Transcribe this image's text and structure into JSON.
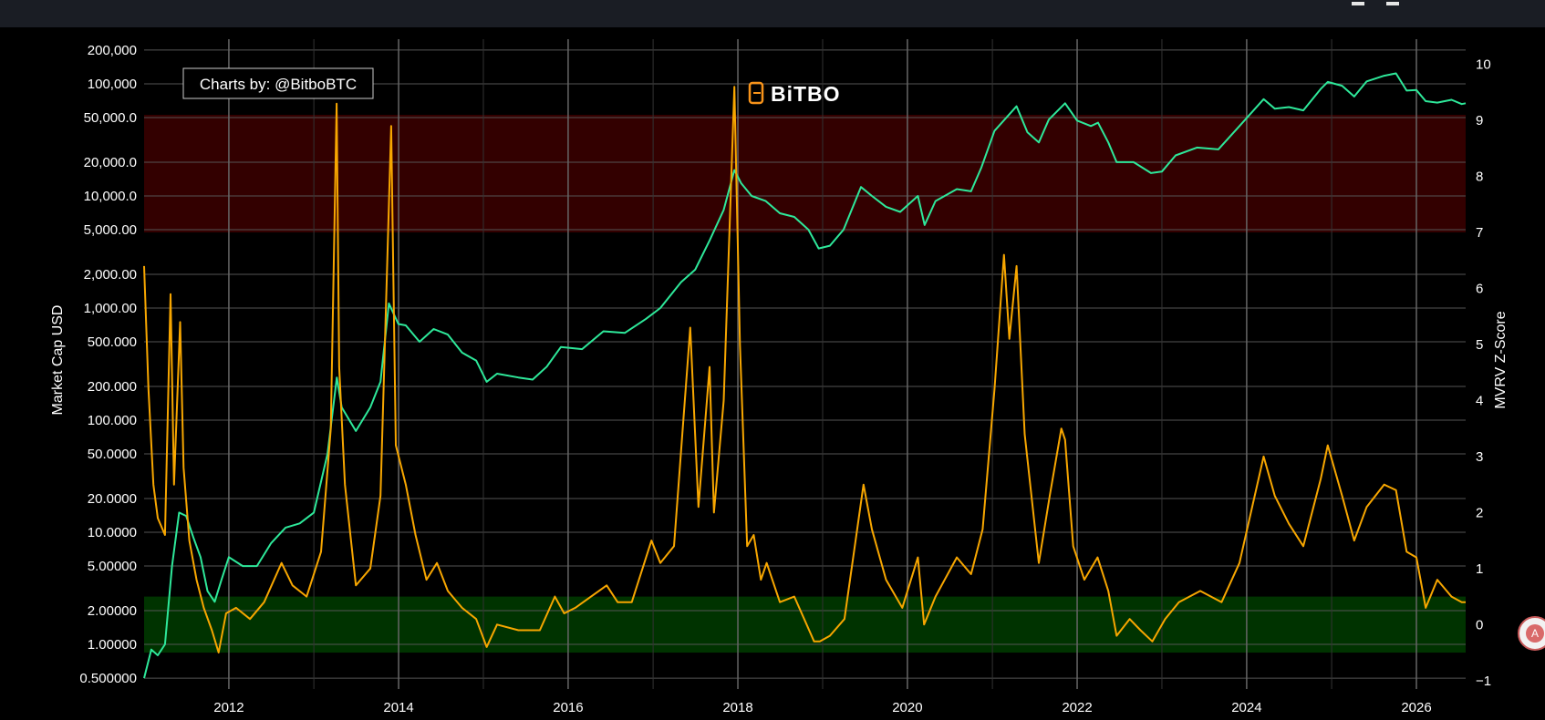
{
  "chart_data": {
    "type": "line",
    "title": "",
    "watermark": "Charts by: @BitboBTC",
    "logo_text": "BiTBO",
    "ylabel": "Market Cap USD",
    "y2label": "MVRV Z-Score",
    "y_scale": "log",
    "ylim": [
      0.4,
      250000
    ],
    "y2lim": [
      -1.15,
      10.45
    ],
    "xlim": [
      "2011-01-01",
      "2026-08-01"
    ],
    "x_ticks": [
      "2012",
      "2014",
      "2016",
      "2018",
      "2020",
      "2022",
      "2024",
      "2026"
    ],
    "y_ticks": [
      "200,000",
      "100,000",
      "50,000.0",
      "20,000.0",
      "10,000.0",
      "5,000.00",
      "2,000.00",
      "1,000.00",
      "500.000",
      "200.000",
      "100.000",
      "50.0000",
      "20.0000",
      "10.0000",
      "5.00000",
      "2.00000",
      "1.00000",
      "0.500000"
    ],
    "y2_ticks": [
      "10",
      "9",
      "8",
      "7",
      "6",
      "5",
      "4",
      "3",
      "2",
      "1",
      "0",
      "−1"
    ],
    "bands": [
      {
        "name": "overvalued zone",
        "y2_range": [
          7,
          9.1
        ],
        "color": "#330000"
      },
      {
        "name": "undervalued zone",
        "y2_range": [
          -0.5,
          0.5
        ],
        "color": "#003300"
      }
    ],
    "series": [
      {
        "role": "market cap",
        "axis": "left",
        "color": "#2ee89a",
        "points": [
          [
            "2011-01-01",
            0.5
          ],
          [
            "2011-02-01",
            0.9
          ],
          [
            "2011-03-01",
            0.8
          ],
          [
            "2011-04-01",
            1.0
          ],
          [
            "2011-05-01",
            5
          ],
          [
            "2011-06-01",
            15
          ],
          [
            "2011-07-01",
            14
          ],
          [
            "2011-08-01",
            9
          ],
          [
            "2011-09-01",
            6
          ],
          [
            "2011-10-01",
            3
          ],
          [
            "2011-11-01",
            2.4
          ],
          [
            "2011-12-01",
            3.8
          ],
          [
            "2012-01-01",
            6
          ],
          [
            "2012-03-01",
            5
          ],
          [
            "2012-05-01",
            5
          ],
          [
            "2012-07-01",
            8
          ],
          [
            "2012-09-01",
            11
          ],
          [
            "2012-11-01",
            12
          ],
          [
            "2013-01-01",
            15
          ],
          [
            "2013-03-01",
            50
          ],
          [
            "2013-04-10",
            240
          ],
          [
            "2013-05-01",
            130
          ],
          [
            "2013-07-01",
            80
          ],
          [
            "2013-09-01",
            130
          ],
          [
            "2013-10-15",
            220
          ],
          [
            "2013-11-20",
            1100
          ],
          [
            "2013-12-31",
            720
          ],
          [
            "2014-02-01",
            700
          ],
          [
            "2014-04-01",
            500
          ],
          [
            "2014-06-01",
            650
          ],
          [
            "2014-08-01",
            580
          ],
          [
            "2014-10-01",
            400
          ],
          [
            "2014-12-01",
            340
          ],
          [
            "2015-01-15",
            220
          ],
          [
            "2015-03-01",
            260
          ],
          [
            "2015-06-01",
            240
          ],
          [
            "2015-08-01",
            230
          ],
          [
            "2015-10-01",
            300
          ],
          [
            "2015-12-01",
            450
          ],
          [
            "2016-03-01",
            430
          ],
          [
            "2016-06-01",
            620
          ],
          [
            "2016-09-01",
            600
          ],
          [
            "2016-12-01",
            800
          ],
          [
            "2017-02-01",
            1000
          ],
          [
            "2017-05-01",
            1700
          ],
          [
            "2017-07-01",
            2200
          ],
          [
            "2017-09-01",
            4000
          ],
          [
            "2017-11-01",
            7500
          ],
          [
            "2017-12-17",
            17000
          ],
          [
            "2018-01-15",
            13000
          ],
          [
            "2018-03-01",
            10000
          ],
          [
            "2018-05-01",
            9000
          ],
          [
            "2018-07-01",
            7000
          ],
          [
            "2018-09-01",
            6500
          ],
          [
            "2018-11-01",
            5000
          ],
          [
            "2018-12-15",
            3400
          ],
          [
            "2019-02-01",
            3600
          ],
          [
            "2019-04-01",
            5000
          ],
          [
            "2019-06-15",
            12000
          ],
          [
            "2019-08-01",
            10000
          ],
          [
            "2019-10-01",
            8000
          ],
          [
            "2019-12-01",
            7200
          ],
          [
            "2020-02-15",
            10000
          ],
          [
            "2020-03-15",
            5500
          ],
          [
            "2020-05-01",
            9000
          ],
          [
            "2020-08-01",
            11500
          ],
          [
            "2020-10-01",
            11000
          ],
          [
            "2020-11-15",
            18000
          ],
          [
            "2021-01-10",
            38000
          ],
          [
            "2021-04-15",
            63000
          ],
          [
            "2021-06-01",
            37000
          ],
          [
            "2021-07-20",
            30000
          ],
          [
            "2021-09-01",
            48000
          ],
          [
            "2021-11-10",
            67000
          ],
          [
            "2022-01-01",
            47000
          ],
          [
            "2022-03-01",
            42000
          ],
          [
            "2022-04-01",
            45000
          ],
          [
            "2022-05-15",
            30000
          ],
          [
            "2022-06-20",
            20000
          ],
          [
            "2022-09-01",
            20000
          ],
          [
            "2022-11-15",
            16000
          ],
          [
            "2023-01-01",
            16500
          ],
          [
            "2023-03-01",
            23000
          ],
          [
            "2023-06-01",
            27000
          ],
          [
            "2023-09-01",
            26000
          ],
          [
            "2023-12-01",
            42000
          ],
          [
            "2024-03-14",
            73000
          ],
          [
            "2024-05-01",
            60000
          ],
          [
            "2024-07-01",
            62000
          ],
          [
            "2024-09-01",
            58000
          ],
          [
            "2024-11-15",
            90000
          ],
          [
            "2024-12-15",
            104000
          ],
          [
            "2025-02-15",
            96000
          ],
          [
            "2025-04-08",
            77000
          ],
          [
            "2025-06-01",
            105000
          ],
          [
            "2025-08-15",
            118000
          ],
          [
            "2025-10-05",
            124000
          ],
          [
            "2025-11-20",
            87000
          ],
          [
            "2026-01-01",
            88000
          ],
          [
            "2026-02-10",
            70000
          ],
          [
            "2026-04-01",
            68000
          ],
          [
            "2026-06-01",
            72000
          ],
          [
            "2026-07-15",
            66000
          ],
          [
            "2026-08-01",
            67000
          ]
        ]
      },
      {
        "role": "MVRV Z-Score",
        "axis": "right",
        "color": "#f7a600",
        "points": [
          [
            "2011-01-01",
            6.4
          ],
          [
            "2011-01-20",
            4.2
          ],
          [
            "2011-02-10",
            2.5
          ],
          [
            "2011-03-01",
            1.9
          ],
          [
            "2011-04-01",
            1.6
          ],
          [
            "2011-04-25",
            5.9
          ],
          [
            "2011-05-10",
            2.5
          ],
          [
            "2011-06-05",
            5.4
          ],
          [
            "2011-06-20",
            2.8
          ],
          [
            "2011-07-15",
            1.5
          ],
          [
            "2011-08-15",
            0.8
          ],
          [
            "2011-09-15",
            0.3
          ],
          [
            "2011-10-20",
            -0.1
          ],
          [
            "2011-11-18",
            -0.5
          ],
          [
            "2011-12-20",
            0.2
          ],
          [
            "2012-02-01",
            0.3
          ],
          [
            "2012-04-01",
            0.1
          ],
          [
            "2012-06-01",
            0.4
          ],
          [
            "2012-08-15",
            1.1
          ],
          [
            "2012-10-01",
            0.7
          ],
          [
            "2012-12-01",
            0.5
          ],
          [
            "2013-02-01",
            1.3
          ],
          [
            "2013-03-15",
            3.5
          ],
          [
            "2013-04-09",
            9.3
          ],
          [
            "2013-04-20",
            4.6
          ],
          [
            "2013-05-15",
            2.5
          ],
          [
            "2013-07-01",
            0.7
          ],
          [
            "2013-09-01",
            1.0
          ],
          [
            "2013-10-15",
            2.3
          ],
          [
            "2013-11-30",
            8.9
          ],
          [
            "2013-12-20",
            3.2
          ],
          [
            "2014-02-01",
            2.5
          ],
          [
            "2014-03-15",
            1.6
          ],
          [
            "2014-05-01",
            0.8
          ],
          [
            "2014-06-15",
            1.1
          ],
          [
            "2014-08-01",
            0.6
          ],
          [
            "2014-10-01",
            0.3
          ],
          [
            "2014-12-01",
            0.1
          ],
          [
            "2015-01-15",
            -0.4
          ],
          [
            "2015-03-01",
            0.0
          ],
          [
            "2015-06-01",
            -0.1
          ],
          [
            "2015-09-01",
            -0.1
          ],
          [
            "2015-11-05",
            0.5
          ],
          [
            "2015-12-15",
            0.2
          ],
          [
            "2016-02-01",
            0.3
          ],
          [
            "2016-06-15",
            0.7
          ],
          [
            "2016-08-01",
            0.4
          ],
          [
            "2016-10-01",
            0.4
          ],
          [
            "2016-12-25",
            1.5
          ],
          [
            "2017-02-01",
            1.1
          ],
          [
            "2017-04-01",
            1.4
          ],
          [
            "2017-06-10",
            5.3
          ],
          [
            "2017-07-15",
            2.1
          ],
          [
            "2017-09-01",
            4.6
          ],
          [
            "2017-09-20",
            2.0
          ],
          [
            "2017-11-01",
            4.0
          ],
          [
            "2017-12-17",
            9.6
          ],
          [
            "2018-01-10",
            5.0
          ],
          [
            "2018-02-10",
            1.4
          ],
          [
            "2018-03-10",
            1.6
          ],
          [
            "2018-04-10",
            0.8
          ],
          [
            "2018-05-05",
            1.1
          ],
          [
            "2018-07-01",
            0.4
          ],
          [
            "2018-09-01",
            0.5
          ],
          [
            "2018-11-25",
            -0.3
          ],
          [
            "2018-12-20",
            -0.3
          ],
          [
            "2019-02-01",
            -0.2
          ],
          [
            "2019-04-05",
            0.1
          ],
          [
            "2019-06-26",
            2.5
          ],
          [
            "2019-08-01",
            1.7
          ],
          [
            "2019-10-01",
            0.8
          ],
          [
            "2019-12-10",
            0.3
          ],
          [
            "2020-02-15",
            1.2
          ],
          [
            "2020-03-13",
            0.0
          ],
          [
            "2020-05-01",
            0.5
          ],
          [
            "2020-08-01",
            1.2
          ],
          [
            "2020-10-01",
            0.9
          ],
          [
            "2020-11-20",
            1.7
          ],
          [
            "2021-01-10",
            4.2
          ],
          [
            "2021-02-20",
            6.6
          ],
          [
            "2021-03-15",
            5.1
          ],
          [
            "2021-04-15",
            6.4
          ],
          [
            "2021-05-20",
            3.4
          ],
          [
            "2021-07-20",
            1.1
          ],
          [
            "2021-09-05",
            2.3
          ],
          [
            "2021-10-25",
            3.5
          ],
          [
            "2021-11-10",
            3.3
          ],
          [
            "2021-12-15",
            1.4
          ],
          [
            "2022-02-01",
            0.8
          ],
          [
            "2022-03-30",
            1.2
          ],
          [
            "2022-05-15",
            0.6
          ],
          [
            "2022-06-20",
            -0.2
          ],
          [
            "2022-08-15",
            0.1
          ],
          [
            "2022-10-01",
            -0.1
          ],
          [
            "2022-11-21",
            -0.3
          ],
          [
            "2023-01-15",
            0.1
          ],
          [
            "2023-03-15",
            0.4
          ],
          [
            "2023-06-15",
            0.6
          ],
          [
            "2023-09-15",
            0.4
          ],
          [
            "2023-12-01",
            1.1
          ],
          [
            "2024-03-14",
            3.0
          ],
          [
            "2024-05-01",
            2.3
          ],
          [
            "2024-07-01",
            1.8
          ],
          [
            "2024-09-01",
            1.4
          ],
          [
            "2024-11-15",
            2.6
          ],
          [
            "2024-12-15",
            3.2
          ],
          [
            "2025-02-15",
            2.3
          ],
          [
            "2025-04-08",
            1.5
          ],
          [
            "2025-06-01",
            2.1
          ],
          [
            "2025-08-15",
            2.5
          ],
          [
            "2025-10-05",
            2.4
          ],
          [
            "2025-11-20",
            1.3
          ],
          [
            "2026-01-01",
            1.2
          ],
          [
            "2026-02-10",
            0.3
          ],
          [
            "2026-04-01",
            0.8
          ],
          [
            "2026-06-01",
            0.5
          ],
          [
            "2026-07-15",
            0.4
          ],
          [
            "2026-08-01",
            0.4
          ]
        ]
      }
    ]
  }
}
